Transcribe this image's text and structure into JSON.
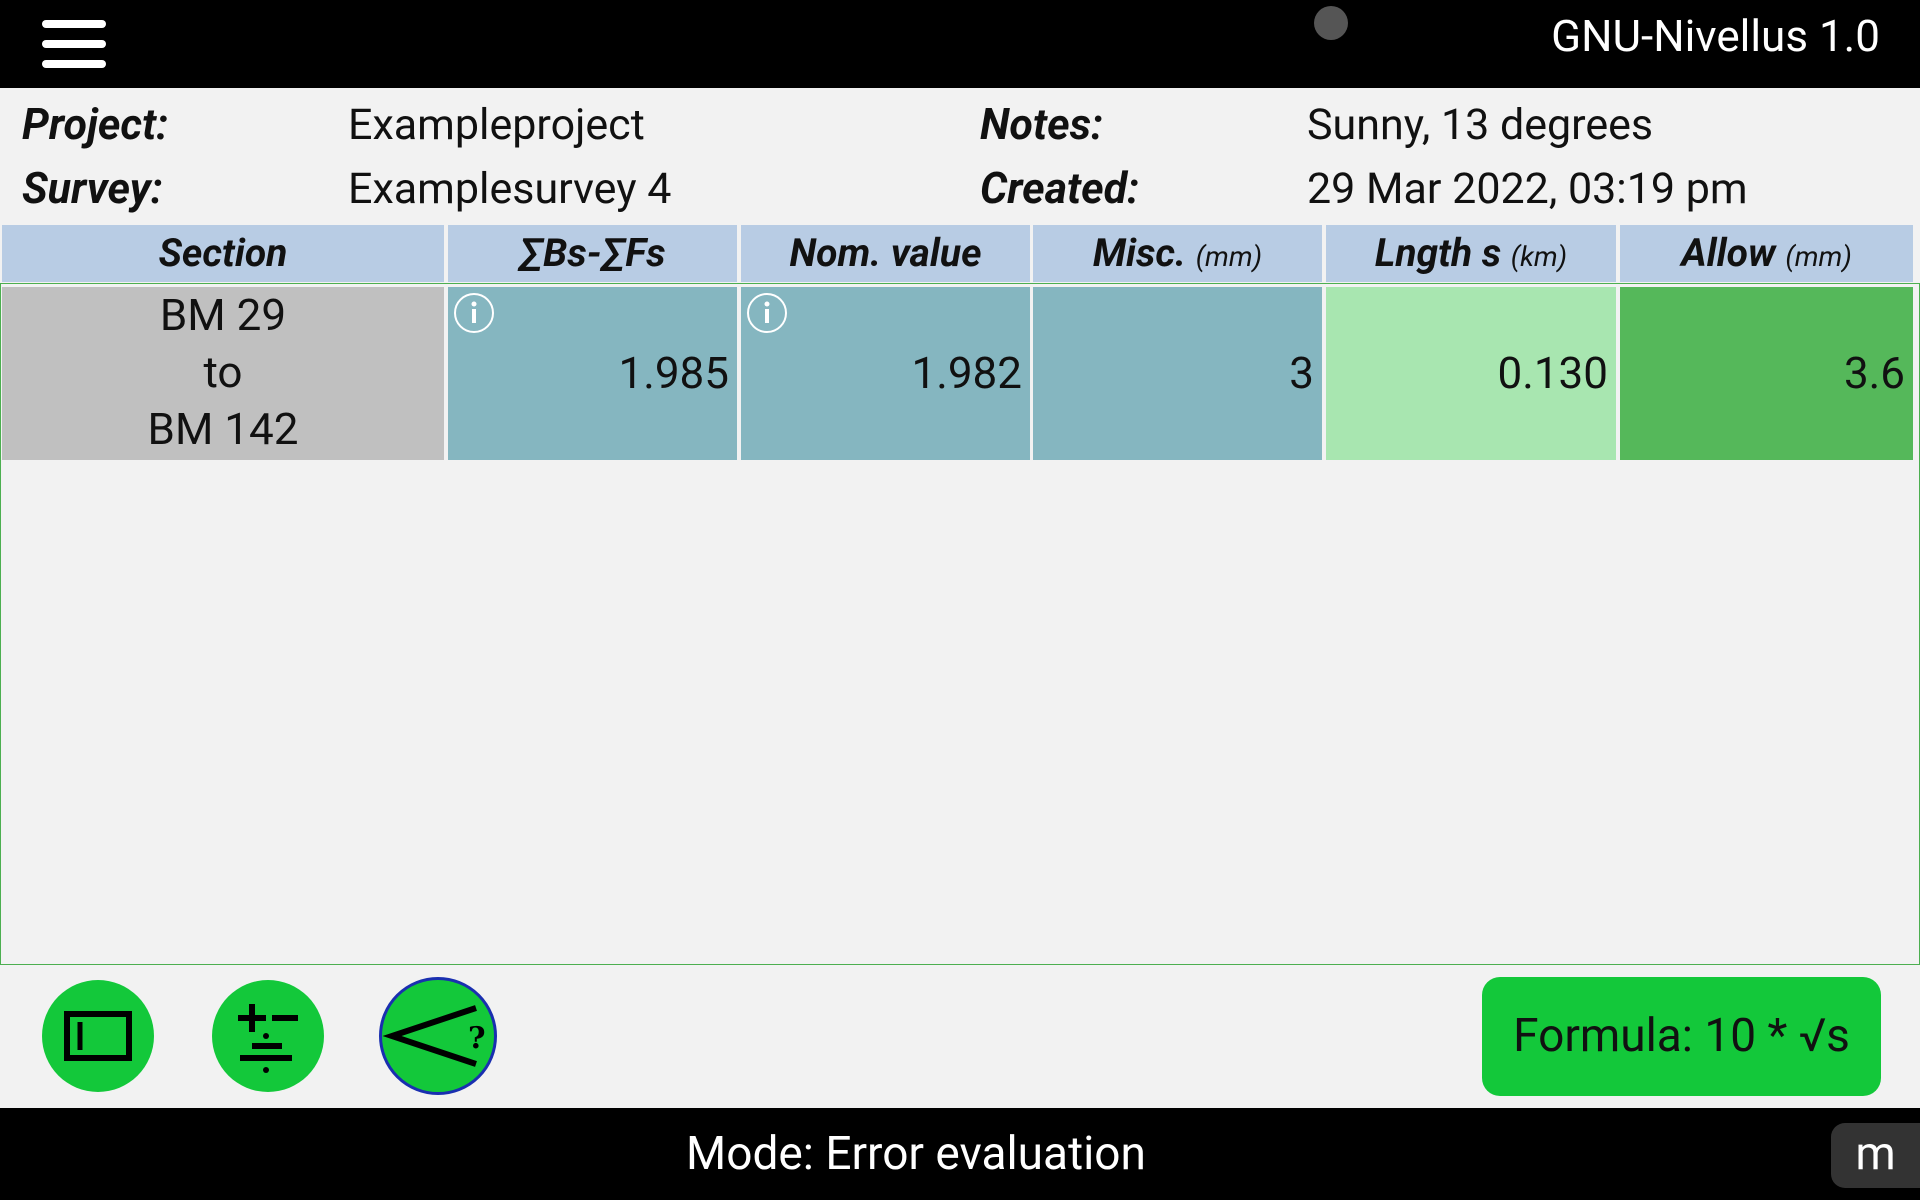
{
  "header": {
    "title": "GNU-Nivellus 1.0"
  },
  "info": {
    "project": {
      "label": "Project:",
      "value": "Exampleproject"
    },
    "survey": {
      "label": "Survey:",
      "value": "Examplesurvey 4"
    },
    "notes": {
      "label": "Notes:",
      "value": "Sunny, 13 degrees"
    },
    "created": {
      "label": "Created:",
      "value": "29 Mar 2022, 03:19 pm"
    }
  },
  "table": {
    "columns": [
      {
        "name": "Section"
      },
      {
        "name": "∑Bs-∑Fs"
      },
      {
        "name": "Nom. value"
      },
      {
        "name": "Misc.",
        "unit": "(mm)"
      },
      {
        "name": "Lngth s",
        "unit": "(km)"
      },
      {
        "name": "Allow",
        "unit": "(mm)"
      }
    ],
    "rows": [
      {
        "section": [
          "BM 29",
          "to",
          "BM 142"
        ],
        "cells": [
          "1.985",
          "1.982",
          "3",
          "0.130",
          "3.6"
        ]
      }
    ]
  },
  "formula_button": "Formula: 10 * √s",
  "footer": {
    "mode": "Mode: Error evaluation",
    "menu_key": "m"
  }
}
